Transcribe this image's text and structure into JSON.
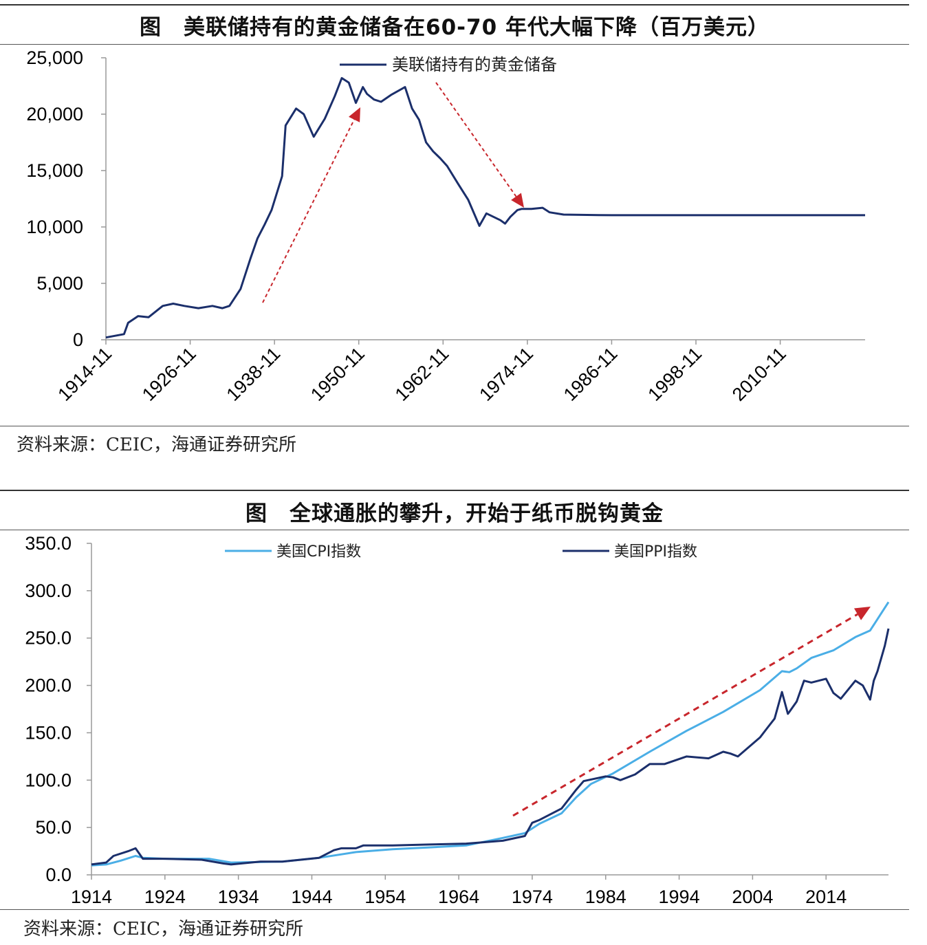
{
  "panel1": {
    "title": "图　美联储持有的黄金储备在60-70 年代大幅下降（百万美元）",
    "source": "资料来源：CEIC，海通证券研究所"
  },
  "panel2": {
    "title": "图　全球通胀的攀升，开始于纸币脱钩黄金",
    "source": "资料来源：CEIC，海通证券研究所"
  },
  "colors": {
    "navy": "#1b2f6b",
    "light_blue": "#4aaee6",
    "arrow_red": "#c8262c"
  },
  "chart_data": [
    {
      "type": "line",
      "title": "",
      "xlabel": "",
      "ylabel": "",
      "xlim": [
        "1914-11",
        "2022-12"
      ],
      "ylim": [
        0,
        25000
      ],
      "yticks": [
        "0",
        "5,000",
        "10,000",
        "15,000",
        "20,000",
        "25,000"
      ],
      "ytick_values": [
        0,
        5000,
        10000,
        15000,
        20000,
        25000
      ],
      "xticks": [
        "1914-11",
        "1926-11",
        "1938-11",
        "1950-11",
        "1962-11",
        "1974-11",
        "1986-11",
        "1998-11",
        "2010-11"
      ],
      "legend_position": "top-center",
      "series": [
        {
          "name": "美联储持有的黄金储备",
          "x": [
            "1914-11",
            "1917-06",
            "1918-01",
            "1919-06",
            "1920-12",
            "1922-12",
            "1924-06",
            "1926-01",
            "1928-01",
            "1930-01",
            "1931-06",
            "1932-06",
            "1934-01",
            "1935-06",
            "1936-06",
            "1937-06",
            "1938-06",
            "1939-12",
            "1940-06",
            "1941-12",
            "1943-01",
            "1944-06",
            "1946-01",
            "1947-06",
            "1948-06",
            "1949-06",
            "1950-06",
            "1951-06",
            "1952-01",
            "1953-01",
            "1954-01",
            "1955-06",
            "1957-06",
            "1958-06",
            "1959-06",
            "1960-06",
            "1961-06",
            "1962-06",
            "1963-06",
            "1965-01",
            "1966-06",
            "1968-01",
            "1969-01",
            "1971-01",
            "1971-09",
            "1972-06",
            "1973-06",
            "1974-01",
            "1975-06",
            "1977-01",
            "1978-01",
            "1980-01",
            "1985-01",
            "1995-01",
            "2010-01",
            "2022-12"
          ],
          "values": [
            200,
            500,
            1500,
            2100,
            2000,
            3000,
            3200,
            3000,
            2800,
            3000,
            2800,
            3000,
            4500,
            7200,
            9000,
            10200,
            11500,
            14500,
            19000,
            20500,
            20000,
            18000,
            19600,
            21600,
            23200,
            22800,
            21000,
            22400,
            21800,
            21300,
            21100,
            21700,
            22400,
            20500,
            19500,
            17500,
            16700,
            16100,
            15400,
            13800,
            12400,
            10100,
            11200,
            10600,
            10300,
            10900,
            11500,
            11600,
            11600,
            11700,
            11300,
            11100,
            11050,
            11040,
            11040,
            11040
          ]
        }
      ]
    },
    {
      "type": "line",
      "title": "",
      "xlabel": "",
      "ylabel": "",
      "xlim": [
        1914,
        2022.5
      ],
      "ylim": [
        0,
        350
      ],
      "yticks": [
        "0.0",
        "50.0",
        "100.0",
        "150.0",
        "200.0",
        "250.0",
        "300.0",
        "350.0"
      ],
      "ytick_values": [
        0,
        50,
        100,
        150,
        200,
        250,
        300,
        350
      ],
      "xticks": [
        "1914",
        "1924",
        "1934",
        "1944",
        "1954",
        "1964",
        "1974",
        "1984",
        "1994",
        "2004",
        "2014"
      ],
      "xtick_values": [
        1914,
        1924,
        1934,
        1944,
        1954,
        1964,
        1974,
        1984,
        1994,
        2004,
        2014
      ],
      "legend_position": "top",
      "series": [
        {
          "name": "美国CPI指数",
          "x": [
            1914,
            1916,
            1918,
            1920,
            1921,
            1924,
            1930,
            1933,
            1940,
            1945,
            1950,
            1955,
            1960,
            1965,
            1970,
            1973,
            1975,
            1978,
            1980,
            1982,
            1985,
            1990,
            1995,
            2000,
            2005,
            2008,
            2009,
            2010,
            2012,
            2015,
            2018,
            2020,
            2021,
            2022.5
          ],
          "values": [
            10,
            11,
            15,
            20,
            18,
            17,
            17,
            13,
            14,
            18,
            24,
            27,
            29,
            31,
            39,
            44,
            54,
            65,
            82,
            96,
            107,
            130,
            152,
            172,
            195,
            215,
            214,
            218,
            229,
            237,
            251,
            258,
            270,
            288
          ]
        },
        {
          "name": "美国PPI指数",
          "x": [
            1914,
            1916,
            1917,
            1919,
            1920,
            1921,
            1924,
            1929,
            1932,
            1933,
            1937,
            1940,
            1945,
            1947,
            1948,
            1950,
            1951,
            1955,
            1960,
            1965,
            1970,
            1973,
            1974,
            1975,
            1978,
            1980,
            1981,
            1984,
            1985,
            1986,
            1988,
            1990,
            1992,
            1995,
            1998,
            2000,
            2001,
            2002,
            2005,
            2006,
            2007,
            2008,
            2008.8,
            2009,
            2010,
            2011,
            2012,
            2013,
            2014,
            2015,
            2016,
            2018,
            2019,
            2020,
            2020.5,
            2021,
            2022,
            2022.5
          ],
          "values": [
            11,
            13,
            20,
            25,
            28,
            17,
            17,
            16,
            12,
            11,
            14,
            14,
            18,
            26,
            28,
            28,
            31,
            31,
            32,
            33,
            36,
            41,
            55,
            58,
            70,
            90,
            99,
            104,
            103,
            100,
            106,
            117,
            117,
            125,
            123,
            130,
            128,
            125,
            145,
            155,
            165,
            193,
            170,
            172,
            183,
            205,
            203,
            205,
            207,
            192,
            186,
            205,
            200,
            185,
            205,
            215,
            242,
            260
          ]
        }
      ]
    }
  ],
  "legend": {
    "panel1_label": "美联储持有的黄金储备",
    "panel2_cpi_label": "美国CPI指数",
    "panel2_ppi_label": "美国PPI指数"
  }
}
